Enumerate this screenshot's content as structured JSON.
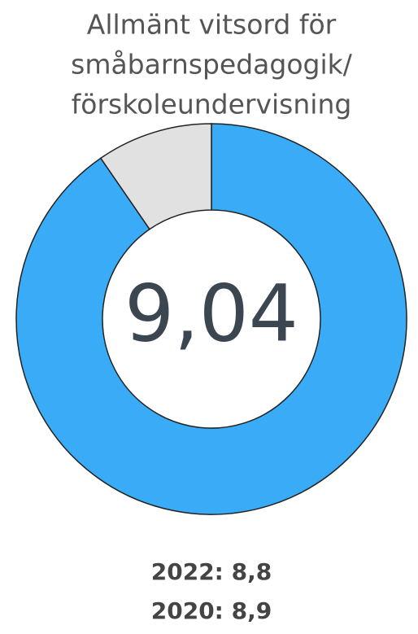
{
  "chart_data": {
    "type": "donut",
    "title": [
      "Allmänt vitsord för",
      "småbarnspedagogik/",
      "förskoleundervisning"
    ],
    "values": [
      9.04,
      0.96
    ],
    "colors": [
      "#3aacf7",
      "#e1e1e1"
    ],
    "center_label": "9,04",
    "footer": [
      "2022: 8,8",
      "2020: 8,9"
    ]
  }
}
